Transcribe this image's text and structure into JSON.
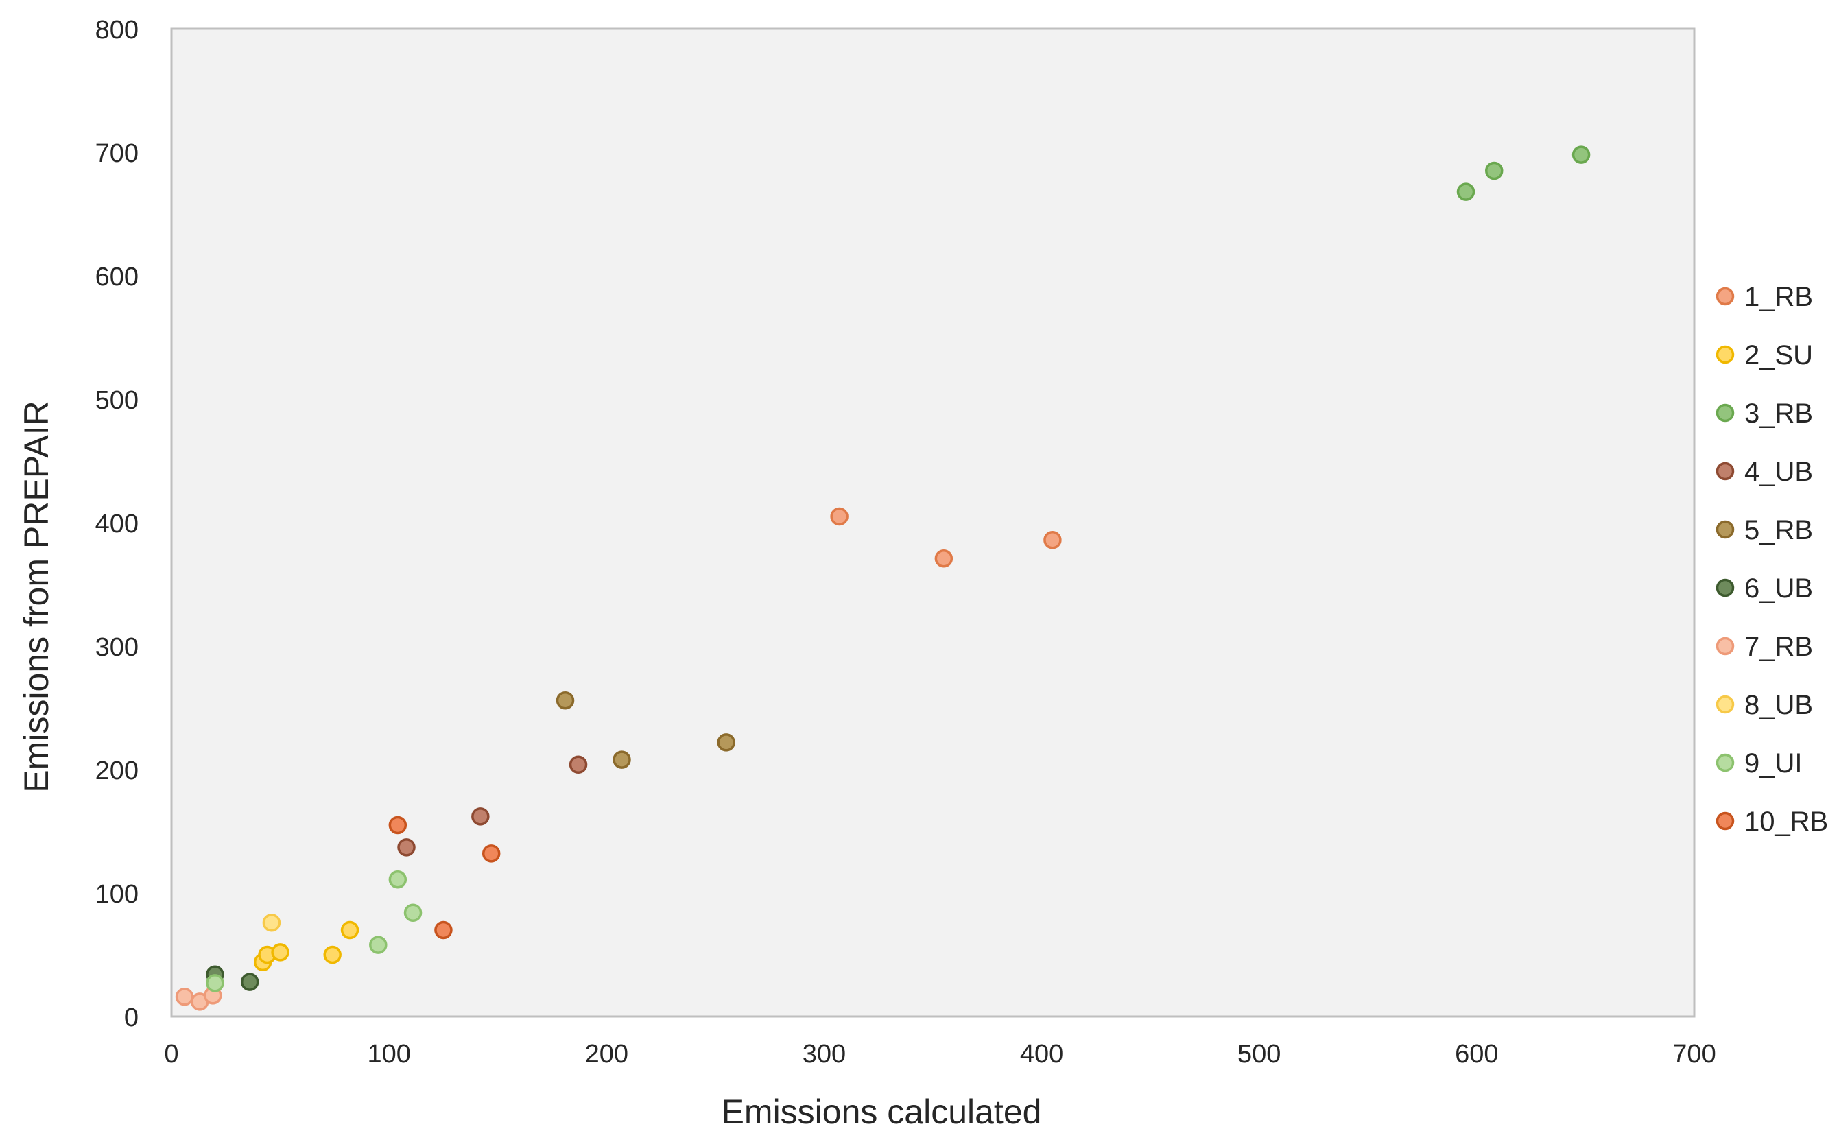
{
  "chart_data": {
    "type": "scatter",
    "title": "",
    "xlabel": "Emissions calculated",
    "ylabel": "Emissions from PREPAIR",
    "xlim": [
      0,
      700
    ],
    "ylim": [
      0,
      800
    ],
    "xticks": [
      0,
      100,
      200,
      300,
      400,
      500,
      600,
      700
    ],
    "yticks": [
      0,
      100,
      200,
      300,
      400,
      500,
      600,
      700,
      800
    ],
    "grid": false,
    "legend_position": "right",
    "series": [
      {
        "name": "1_RB",
        "fill": "#F4A582",
        "stroke": "#E07A48",
        "points": [
          [
            307,
            405
          ],
          [
            355,
            371
          ],
          [
            405,
            386
          ]
        ]
      },
      {
        "name": "2_SU",
        "fill": "#FFD966",
        "stroke": "#F0B800",
        "points": [
          [
            42,
            44
          ],
          [
            44,
            50
          ],
          [
            50,
            52
          ],
          [
            74,
            50
          ],
          [
            82,
            70
          ]
        ]
      },
      {
        "name": "3_RB",
        "fill": "#93C47D",
        "stroke": "#6AA84F",
        "points": [
          [
            595,
            668
          ],
          [
            608,
            685
          ],
          [
            648,
            698
          ]
        ]
      },
      {
        "name": "4_UB",
        "fill": "#C0806B",
        "stroke": "#8E4A32",
        "points": [
          [
            108,
            137
          ],
          [
            142,
            162
          ],
          [
            187,
            204
          ]
        ]
      },
      {
        "name": "5_RB",
        "fill": "#B5985A",
        "stroke": "#8B6A2B",
        "points": [
          [
            181,
            256
          ],
          [
            207,
            208
          ],
          [
            255,
            222
          ]
        ]
      },
      {
        "name": "6_UB",
        "fill": "#6E8B5C",
        "stroke": "#3D5A2E",
        "points": [
          [
            20,
            34
          ],
          [
            36,
            28
          ]
        ]
      },
      {
        "name": "7_RB",
        "fill": "#F8BFA5",
        "stroke": "#EE9A78",
        "points": [
          [
            6,
            16
          ],
          [
            13,
            12
          ],
          [
            19,
            17
          ]
        ]
      },
      {
        "name": "8_UB",
        "fill": "#FFE38A",
        "stroke": "#F7C948",
        "points": [
          [
            46,
            76
          ]
        ]
      },
      {
        "name": "9_UI",
        "fill": "#B6DCA0",
        "stroke": "#8CC26E",
        "points": [
          [
            20,
            27
          ],
          [
            95,
            58
          ],
          [
            104,
            111
          ],
          [
            111,
            84
          ]
        ]
      },
      {
        "name": "10_RB",
        "fill": "#F0875A",
        "stroke": "#C8541E",
        "points": [
          [
            104,
            155
          ],
          [
            125,
            70
          ],
          [
            147,
            132
          ]
        ]
      }
    ]
  }
}
